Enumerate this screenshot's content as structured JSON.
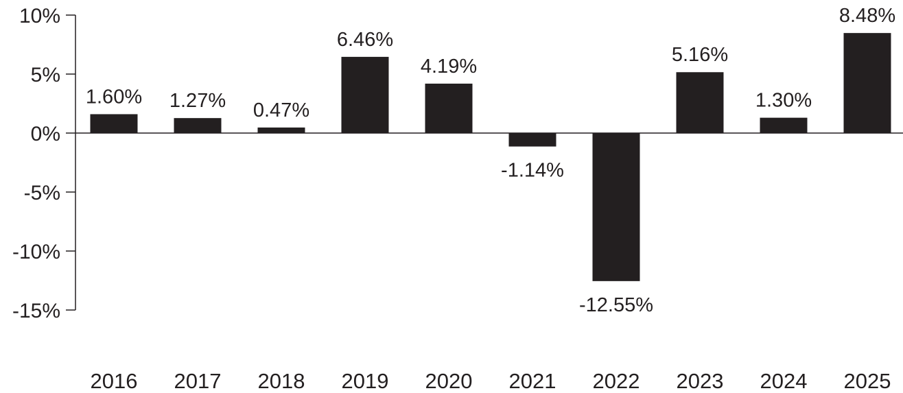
{
  "chart_data": {
    "type": "bar",
    "title": "",
    "xlabel": "",
    "ylabel": "",
    "categories": [
      "2016",
      "2017",
      "2018",
      "2019",
      "2020",
      "2021",
      "2022",
      "2023",
      "2024",
      "2025"
    ],
    "values": [
      1.6,
      1.27,
      0.47,
      6.46,
      4.19,
      -1.14,
      -12.55,
      5.16,
      1.3,
      8.48
    ],
    "value_labels": [
      "1.60%",
      "1.27%",
      "0.47%",
      "6.46%",
      "4.19%",
      "-1.14%",
      "-12.55%",
      "5.16%",
      "1.30%",
      "8.48%"
    ],
    "ylim": [
      -15,
      10
    ],
    "yticks": [
      10,
      5,
      0,
      -5,
      -10,
      -15
    ],
    "ytick_labels": [
      "10%",
      "5%",
      "0%",
      "-5%",
      "-10%",
      "-15%"
    ],
    "grid": false,
    "legend": "none",
    "bar_color": "#231f20"
  }
}
